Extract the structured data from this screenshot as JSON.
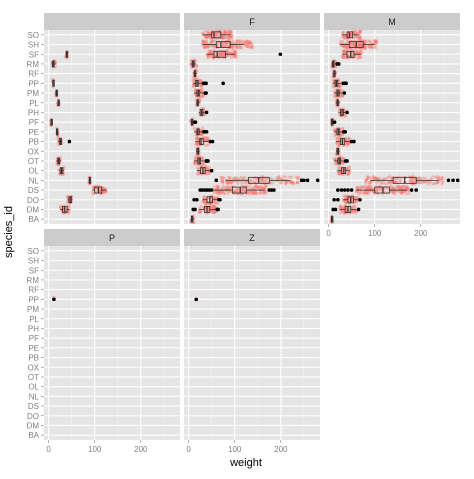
{
  "chart_data": {
    "type": "boxplot-facet",
    "xlabel": "weight",
    "ylabel": "species_id",
    "xlim": [
      -10,
      285
    ],
    "x_ticks": [
      0,
      100,
      200
    ],
    "x_tick_labels": [
      "0",
      "100",
      "200"
    ],
    "categories_top_to_bottom": [
      "SO",
      "SH",
      "SF",
      "RM",
      "RF",
      "PP",
      "PM",
      "PL",
      "PH",
      "PF",
      "PE",
      "PB",
      "OX",
      "OT",
      "OL",
      "NL",
      "DS",
      "DO",
      "DM",
      "BA"
    ],
    "colors": {
      "panel_bg": "#e5e5e5",
      "grid": "#ffffff",
      "strip_bg": "#cccccc",
      "jitter": "#f8766d",
      "box_line": "#333333",
      "outlier": "#000000",
      "axis_text": "#7f7f7f"
    },
    "facets": [
      {
        "label": "",
        "boxes": [
          {
            "species": "SO",
            "q1": null
          },
          {
            "species": "SH",
            "q1": null
          },
          {
            "species": "SF",
            "q1": 38,
            "med": 39,
            "q3": 40,
            "lo": 36,
            "hi": 42,
            "jitter_lo": 36,
            "jitter_hi": 42,
            "outliers": []
          },
          {
            "species": "RM",
            "q1": 8,
            "med": 10,
            "q3": 12,
            "lo": 6,
            "hi": 15,
            "jitter_lo": 6,
            "jitter_hi": 16,
            "outliers": []
          },
          {
            "species": "RF",
            "q1": null
          },
          {
            "species": "PP",
            "q1": 9,
            "med": 10,
            "q3": 11,
            "lo": 8,
            "hi": 12,
            "jitter_lo": 8,
            "jitter_hi": 12,
            "outliers": []
          },
          {
            "species": "PM",
            "q1": 16,
            "med": 17,
            "q3": 18,
            "lo": 15,
            "hi": 19,
            "jitter_lo": 15,
            "jitter_hi": 19,
            "outliers": []
          },
          {
            "species": "PL",
            "q1": 20,
            "med": 21,
            "q3": 22,
            "lo": 19,
            "hi": 23,
            "jitter_lo": 19,
            "jitter_hi": 23,
            "outliers": []
          },
          {
            "species": "PH",
            "q1": null
          },
          {
            "species": "PF",
            "q1": 5,
            "med": 6,
            "q3": 7,
            "lo": 4,
            "hi": 8,
            "jitter_lo": 4,
            "jitter_hi": 8,
            "outliers": []
          },
          {
            "species": "PE",
            "q1": 17,
            "med": 18,
            "q3": 19,
            "lo": 16,
            "hi": 21,
            "jitter_lo": 16,
            "jitter_hi": 21,
            "outliers": []
          },
          {
            "species": "PB",
            "q1": 24,
            "med": 26,
            "q3": 28,
            "lo": 20,
            "hi": 30,
            "jitter_lo": 20,
            "jitter_hi": 30,
            "outliers": [
              45
            ]
          },
          {
            "species": "OX",
            "q1": null
          },
          {
            "species": "OT",
            "q1": 20,
            "med": 22,
            "q3": 24,
            "lo": 17,
            "hi": 27,
            "jitter_lo": 17,
            "jitter_hi": 27,
            "outliers": []
          },
          {
            "species": "OL",
            "q1": 25,
            "med": 28,
            "q3": 31,
            "lo": 22,
            "hi": 33,
            "jitter_lo": 22,
            "jitter_hi": 34,
            "outliers": []
          },
          {
            "species": "NL",
            "q1": 88,
            "med": 89,
            "q3": 90,
            "lo": 87,
            "hi": 91,
            "jitter_lo": 87,
            "jitter_hi": 91,
            "outliers": []
          },
          {
            "species": "DS",
            "q1": 100,
            "med": 108,
            "q3": 115,
            "lo": 95,
            "hi": 125,
            "jitter_lo": 95,
            "jitter_hi": 125,
            "outliers": []
          },
          {
            "species": "DO",
            "q1": 44,
            "med": 47,
            "q3": 50,
            "lo": 41,
            "hi": 52,
            "jitter_lo": 41,
            "jitter_hi": 52,
            "outliers": []
          },
          {
            "species": "DM",
            "q1": 30,
            "med": 35,
            "q3": 40,
            "lo": 25,
            "hi": 45,
            "jitter_lo": 25,
            "jitter_hi": 45,
            "outliers": []
          },
          {
            "species": "BA",
            "q1": null
          }
        ]
      },
      {
        "label": "F",
        "boxes": [
          {
            "species": "SO",
            "q1": 50,
            "med": 55,
            "q3": 70,
            "lo": 30,
            "hi": 90,
            "jitter_lo": 30,
            "jitter_hi": 95,
            "outliers": []
          },
          {
            "species": "SH",
            "q1": 60,
            "med": 70,
            "q3": 90,
            "lo": 30,
            "hi": 120,
            "jitter_lo": 30,
            "jitter_hi": 140,
            "outliers": []
          },
          {
            "species": "SF",
            "q1": 55,
            "med": 62,
            "q3": 80,
            "lo": 40,
            "hi": 100,
            "jitter_lo": 40,
            "jitter_hi": 105,
            "outliers": [
              199
            ]
          },
          {
            "species": "RM",
            "q1": 8,
            "med": 10,
            "q3": 12,
            "lo": 5,
            "hi": 16,
            "jitter_lo": 5,
            "jitter_hi": 18,
            "outliers": []
          },
          {
            "species": "RF",
            "q1": 12,
            "med": 13,
            "q3": 15,
            "lo": 10,
            "hi": 18,
            "jitter_lo": 10,
            "jitter_hi": 18,
            "outliers": []
          },
          {
            "species": "PP",
            "q1": 15,
            "med": 18,
            "q3": 21,
            "lo": 10,
            "hi": 28,
            "jitter_lo": 10,
            "jitter_hi": 30,
            "outliers": [
              32,
              34,
              36,
              38,
              75
            ]
          },
          {
            "species": "PM",
            "q1": 18,
            "med": 21,
            "q3": 24,
            "lo": 12,
            "hi": 32,
            "jitter_lo": 12,
            "jitter_hi": 33,
            "outliers": [
              36,
              38
            ]
          },
          {
            "species": "PL",
            "q1": 18,
            "med": 19,
            "q3": 21,
            "lo": 16,
            "hi": 24,
            "jitter_lo": 16,
            "jitter_hi": 24,
            "outliers": []
          },
          {
            "species": "PH",
            "q1": 25,
            "med": 28,
            "q3": 31,
            "lo": 22,
            "hi": 35,
            "jitter_lo": 22,
            "jitter_hi": 35,
            "outliers": [
              39
            ]
          },
          {
            "species": "PF",
            "q1": 6,
            "med": 7,
            "q3": 8,
            "lo": 4,
            "hi": 10,
            "jitter_lo": 4,
            "jitter_hi": 11,
            "outliers": [
              13,
              15
            ]
          },
          {
            "species": "PE",
            "q1": 18,
            "med": 20,
            "q3": 23,
            "lo": 12,
            "hi": 30,
            "jitter_lo": 12,
            "jitter_hi": 31,
            "outliers": [
              33,
              35,
              39
            ]
          },
          {
            "species": "PB",
            "q1": 24,
            "med": 27,
            "q3": 32,
            "lo": 14,
            "hi": 42,
            "jitter_lo": 14,
            "jitter_hi": 44,
            "outliers": [
              47,
              52
            ]
          },
          {
            "species": "OX",
            "q1": 18,
            "med": 20,
            "q3": 22,
            "lo": 16,
            "hi": 24,
            "jitter_lo": 16,
            "jitter_hi": 24,
            "outliers": []
          },
          {
            "species": "OT",
            "q1": 20,
            "med": 23,
            "q3": 26,
            "lo": 12,
            "hi": 33,
            "jitter_lo": 12,
            "jitter_hi": 34,
            "outliers": [
              38,
              40,
              42
            ]
          },
          {
            "species": "OL",
            "q1": 26,
            "med": 31,
            "q3": 36,
            "lo": 18,
            "hi": 46,
            "jitter_lo": 18,
            "jitter_hi": 46,
            "outliers": [
              50
            ]
          },
          {
            "species": "NL",
            "q1": 130,
            "med": 152,
            "q3": 175,
            "lo": 80,
            "hi": 220,
            "jitter_lo": 70,
            "jitter_hi": 240,
            "outliers": [
              60,
              245,
              250,
              258,
              280
            ]
          },
          {
            "species": "DS",
            "q1": 95,
            "med": 112,
            "q3": 125,
            "lo": 55,
            "hi": 165,
            "jitter_lo": 55,
            "jitter_hi": 170,
            "outliers": [
              25,
              30,
              35,
              40,
              45,
              50,
              175,
              180,
              185
            ]
          },
          {
            "species": "DO",
            "q1": 40,
            "med": 46,
            "q3": 52,
            "lo": 30,
            "hi": 62,
            "jitter_lo": 30,
            "jitter_hi": 64,
            "outliers": [
              12,
              18,
              66,
              68
            ]
          },
          {
            "species": "DM",
            "q1": 34,
            "med": 40,
            "q3": 46,
            "lo": 22,
            "hi": 58,
            "jitter_lo": 22,
            "jitter_hi": 60,
            "outliers": [
              10,
              14,
              62,
              64
            ]
          },
          {
            "species": "BA",
            "q1": 6,
            "med": 7,
            "q3": 9,
            "lo": 4,
            "hi": 12,
            "jitter_lo": 4,
            "jitter_hi": 12,
            "outliers": []
          }
        ]
      },
      {
        "label": "M",
        "boxes": [
          {
            "species": "SO",
            "q1": 40,
            "med": 45,
            "q3": 52,
            "lo": 30,
            "hi": 65,
            "jitter_lo": 30,
            "jitter_hi": 70,
            "outliers": []
          },
          {
            "species": "SH",
            "q1": 45,
            "med": 60,
            "q3": 75,
            "lo": 25,
            "hi": 100,
            "jitter_lo": 25,
            "jitter_hi": 105,
            "outliers": []
          },
          {
            "species": "SF",
            "q1": 40,
            "med": 48,
            "q3": 55,
            "lo": 30,
            "hi": 70,
            "jitter_lo": 30,
            "jitter_hi": 72,
            "outliers": []
          },
          {
            "species": "RM",
            "q1": 8,
            "med": 10,
            "q3": 12,
            "lo": 6,
            "hi": 16,
            "jitter_lo": 6,
            "jitter_hi": 17,
            "outliers": [
              19,
              22
            ]
          },
          {
            "species": "RF",
            "q1": 11,
            "med": 12,
            "q3": 14,
            "lo": 9,
            "hi": 17,
            "jitter_lo": 9,
            "jitter_hi": 17,
            "outliers": []
          },
          {
            "species": "PP",
            "q1": 14,
            "med": 17,
            "q3": 20,
            "lo": 9,
            "hi": 28,
            "jitter_lo": 9,
            "jitter_hi": 30,
            "outliers": [
              32,
              35,
              38
            ]
          },
          {
            "species": "PM",
            "q1": 18,
            "med": 20,
            "q3": 23,
            "lo": 12,
            "hi": 30,
            "jitter_lo": 12,
            "jitter_hi": 31,
            "outliers": [
              34
            ]
          },
          {
            "species": "PL",
            "q1": 18,
            "med": 19,
            "q3": 21,
            "lo": 16,
            "hi": 24,
            "jitter_lo": 16,
            "jitter_hi": 24,
            "outliers": []
          },
          {
            "species": "PH",
            "q1": 26,
            "med": 29,
            "q3": 32,
            "lo": 22,
            "hi": 36,
            "jitter_lo": 22,
            "jitter_hi": 37,
            "outliers": [
              40
            ]
          },
          {
            "species": "PF",
            "q1": 6,
            "med": 7,
            "q3": 8,
            "lo": 4,
            "hi": 10,
            "jitter_lo": 4,
            "jitter_hi": 11,
            "outliers": [
              13
            ]
          },
          {
            "species": "PE",
            "q1": 18,
            "med": 21,
            "q3": 24,
            "lo": 12,
            "hi": 30,
            "jitter_lo": 12,
            "jitter_hi": 31,
            "outliers": [
              33,
              36
            ]
          },
          {
            "species": "PB",
            "q1": 26,
            "med": 30,
            "q3": 35,
            "lo": 16,
            "hi": 46,
            "jitter_lo": 16,
            "jitter_hi": 47,
            "outliers": [
              50,
              55
            ]
          },
          {
            "species": "OX",
            "q1": 18,
            "med": 20,
            "q3": 22,
            "lo": 16,
            "hi": 24,
            "jitter_lo": 16,
            "jitter_hi": 24,
            "outliers": []
          },
          {
            "species": "OT",
            "q1": 20,
            "med": 23,
            "q3": 26,
            "lo": 12,
            "hi": 33,
            "jitter_lo": 12,
            "jitter_hi": 34,
            "outliers": [
              37,
              40
            ]
          },
          {
            "species": "OL",
            "q1": 28,
            "med": 33,
            "q3": 37,
            "lo": 20,
            "hi": 46,
            "jitter_lo": 20,
            "jitter_hi": 47,
            "outliers": []
          },
          {
            "species": "NL",
            "q1": 140,
            "med": 165,
            "q3": 190,
            "lo": 90,
            "hi": 240,
            "jitter_lo": 80,
            "jitter_hi": 250,
            "outliers": [
              260,
              270,
              280
            ]
          },
          {
            "species": "DS",
            "q1": 100,
            "med": 118,
            "q3": 132,
            "lo": 60,
            "hi": 170,
            "jitter_lo": 60,
            "jitter_hi": 175,
            "outliers": [
              20,
              28,
              35,
              42,
              50,
              180,
              190
            ]
          },
          {
            "species": "DO",
            "q1": 42,
            "med": 48,
            "q3": 54,
            "lo": 32,
            "hi": 64,
            "jitter_lo": 32,
            "jitter_hi": 65,
            "outliers": [
              12,
              20,
              68
            ]
          },
          {
            "species": "DM",
            "q1": 36,
            "med": 42,
            "q3": 48,
            "lo": 24,
            "hi": 60,
            "jitter_lo": 24,
            "jitter_hi": 62,
            "outliers": [
              10,
              15,
              65
            ]
          },
          {
            "species": "BA",
            "q1": 6,
            "med": 7,
            "q3": 8,
            "lo": 4,
            "hi": 10,
            "jitter_lo": 4,
            "jitter_hi": 10,
            "outliers": []
          }
        ]
      },
      {
        "label": "P",
        "boxes": [
          {
            "species": "PP",
            "q1": null,
            "outliers": [],
            "points": [
              11,
              12
            ]
          }
        ]
      },
      {
        "label": "Z",
        "boxes": [
          {
            "species": "PP",
            "q1": null,
            "outliers": [],
            "points": [
              16,
              17
            ]
          }
        ]
      }
    ]
  }
}
